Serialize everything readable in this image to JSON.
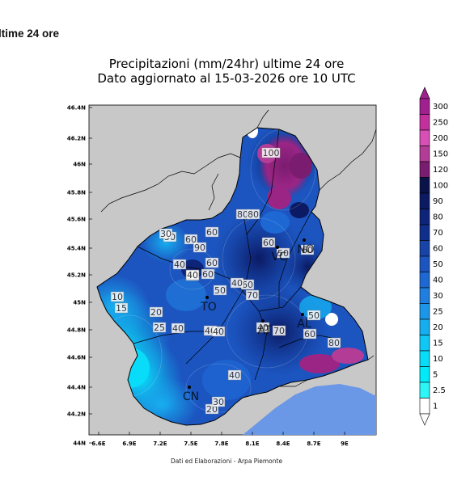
{
  "section_heading": "ltime 24 ore",
  "map": {
    "title_line1": "Precipitazioni (mm/24hr) ultime 24 ore",
    "title_line2": "Dato aggiornato al 15-03-2026 ore 10 UTC",
    "credit": "Dati ed Elaborazioni - Arpa Piemonte",
    "lat_ticks": [
      "46.4N",
      "46.2N",
      "46N",
      "45.8N",
      "45.6N",
      "45.4N",
      "45.2N",
      "45N",
      "44.8N",
      "44.6N",
      "44.4N",
      "44.2N",
      "44N"
    ],
    "lon_ticks": [
      "6.6E",
      "6.9E",
      "7.2E",
      "7.5E",
      "7.8E",
      "8.1E",
      "8.4E",
      "8.7E",
      "9E"
    ],
    "province_labels": [
      "TO",
      "CN",
      "AT",
      "AL",
      "NO",
      "VC"
    ],
    "station_values": [
      "100",
      "80",
      "80",
      "50",
      "60",
      "60",
      "90",
      "50",
      "40",
      "60",
      "50",
      "30",
      "40",
      "10",
      "15",
      "20",
      "25",
      "40",
      "40",
      "40",
      "50",
      "60",
      "70",
      "40",
      "70",
      "50",
      "60",
      "80",
      "20",
      "30",
      "40",
      "60",
      "60",
      "40",
      "60"
    ],
    "legend": {
      "levels": [
        "300",
        "250",
        "200",
        "150",
        "120",
        "100",
        "90",
        "80",
        "70",
        "60",
        "50",
        "40",
        "30",
        "25",
        "20",
        "15",
        "10",
        "5",
        "2.5",
        "1"
      ],
      "colors": [
        "#a0208f",
        "#c2309e",
        "#d84fb5",
        "#b33d96",
        "#7a1c70",
        "#09134a",
        "#0b1a63",
        "#0d2478",
        "#0f2f8a",
        "#1844a8",
        "#1c55c0",
        "#1e68d4",
        "#1f7ee0",
        "#1c96e8",
        "#17aef0",
        "#10c7f5",
        "#08dcf8",
        "#00eaf8",
        "#2ef5f8",
        "#ffffff"
      ]
    }
  }
}
